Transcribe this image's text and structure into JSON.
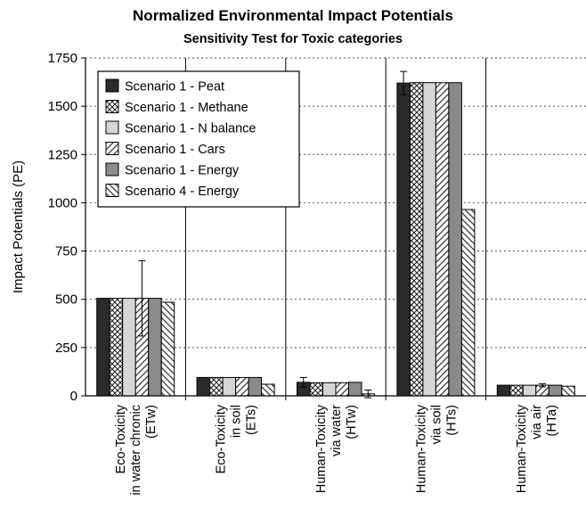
{
  "chart_data": {
    "type": "bar",
    "title": "Normalized Environmental Impact Potentials",
    "subtitle": "Sensitivity Test for Toxic categories",
    "xlabel": "",
    "ylabel": "Impact Potentials (PE)",
    "ylim": [
      0,
      1750
    ],
    "yticks": [
      0,
      250,
      500,
      750,
      1000,
      1250,
      1500,
      1750
    ],
    "grid": "horizontal dotted",
    "legend_position": "top-left",
    "categories": [
      [
        "Eco-Toxicity",
        "in water chronic",
        "(ETw)"
      ],
      [
        "Eco-Toxicity",
        "in soil",
        "(ETs)"
      ],
      [
        "Human-Toxicity",
        "via water",
        "(HTw)"
      ],
      [
        "Human-Toxicity",
        "via soil",
        "(HTs)"
      ],
      [
        "Human-Toxicity",
        "via air",
        "(HTa)"
      ]
    ],
    "series": [
      {
        "name": "Scenario 1 - Peat",
        "pattern": "solid-dark",
        "values": [
          505,
          95,
          70,
          1620,
          55
        ],
        "errors": [
          null,
          null,
          25,
          60,
          null
        ]
      },
      {
        "name": "Scenario 1 - Methane",
        "pattern": "crosshatch",
        "values": [
          505,
          95,
          68,
          1622,
          55
        ],
        "errors": [
          null,
          null,
          null,
          null,
          null
        ]
      },
      {
        "name": "Scenario 1 - N balance",
        "pattern": "solid-light",
        "values": [
          505,
          95,
          68,
          1622,
          55
        ],
        "errors": [
          null,
          null,
          null,
          null,
          null
        ]
      },
      {
        "name": "Scenario 1 - Cars",
        "pattern": "diagonal-right",
        "values": [
          505,
          95,
          68,
          1622,
          55
        ],
        "errors": [
          195,
          null,
          null,
          null,
          8
        ]
      },
      {
        "name": "Scenario 1 - Energy",
        "pattern": "solid-medium",
        "values": [
          505,
          95,
          70,
          1622,
          55
        ],
        "errors": [
          null,
          null,
          null,
          null,
          null
        ]
      },
      {
        "name": "Scenario 4 - Energy",
        "pattern": "diagonal-left",
        "values": [
          485,
          60,
          10,
          965,
          50
        ],
        "errors": [
          null,
          null,
          20,
          null,
          null
        ]
      }
    ]
  }
}
